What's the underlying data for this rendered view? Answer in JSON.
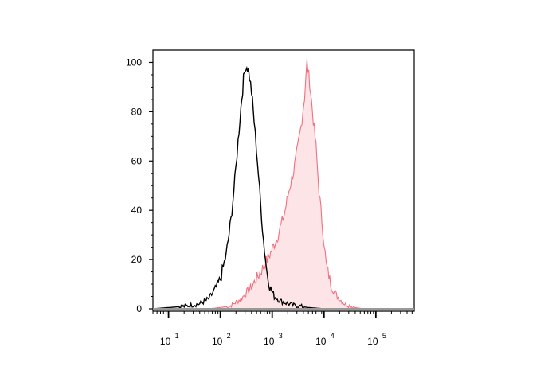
{
  "colors": {
    "axis": "#000000",
    "control_line": "#000000",
    "sample_line": "#f07080",
    "sample_fill": "#fde4e6",
    "baseline_overlap": "#999999"
  },
  "chart_data": {
    "type": "area",
    "title": "",
    "xlabel": "",
    "ylabel": "",
    "xscale": "log",
    "xlim": [
      5,
      550000
    ],
    "ylim": [
      0,
      105
    ],
    "grid": false,
    "legend": "none",
    "x_ticks": [
      {
        "base": "10",
        "exp": "1",
        "value": 10
      },
      {
        "base": "10",
        "exp": "2",
        "value": 100
      },
      {
        "base": "10",
        "exp": "3",
        "value": 1000
      },
      {
        "base": "10",
        "exp": "4",
        "value": 10000
      },
      {
        "base": "10",
        "exp": "5",
        "value": 100000
      }
    ],
    "y_ticks": [
      "0",
      "20",
      "40",
      "60",
      "80",
      "100"
    ],
    "y_tick_values": [
      0,
      20,
      40,
      60,
      80,
      100
    ],
    "series": [
      {
        "style": "line",
        "color": "#000000",
        "points": [
          [
            5,
            0
          ],
          [
            10,
            0.5
          ],
          [
            20,
            1
          ],
          [
            40,
            2
          ],
          [
            60,
            4
          ],
          [
            80,
            8
          ],
          [
            100,
            12
          ],
          [
            130,
            22
          ],
          [
            160,
            36
          ],
          [
            190,
            52
          ],
          [
            220,
            68
          ],
          [
            250,
            82
          ],
          [
            280,
            93
          ],
          [
            310,
            99
          ],
          [
            350,
            97
          ],
          [
            400,
            88
          ],
          [
            450,
            76
          ],
          [
            520,
            60
          ],
          [
            600,
            42
          ],
          [
            680,
            28
          ],
          [
            780,
            16
          ],
          [
            900,
            9
          ],
          [
            1100,
            5
          ],
          [
            1500,
            3
          ],
          [
            2500,
            1.5
          ],
          [
            5000,
            0.5
          ],
          [
            10000,
            0
          ],
          [
            550000,
            0
          ]
        ]
      },
      {
        "style": "filled",
        "color": "#f07080",
        "points": [
          [
            5,
            0
          ],
          [
            60,
            0
          ],
          [
            150,
            1
          ],
          [
            250,
            4
          ],
          [
            400,
            9
          ],
          [
            600,
            15
          ],
          [
            900,
            22
          ],
          [
            1300,
            30
          ],
          [
            1700,
            38
          ],
          [
            2100,
            48
          ],
          [
            2600,
            56
          ],
          [
            3100,
            65
          ],
          [
            3600,
            74
          ],
          [
            4200,
            86
          ],
          [
            4700,
            100
          ],
          [
            5300,
            92
          ],
          [
            6000,
            80
          ],
          [
            7000,
            66
          ],
          [
            8000,
            48
          ],
          [
            9500,
            32
          ],
          [
            11000,
            18
          ],
          [
            14000,
            9
          ],
          [
            18000,
            5
          ],
          [
            25000,
            2
          ],
          [
            40000,
            0.5
          ],
          [
            60000,
            0
          ],
          [
            550000,
            0
          ]
        ]
      }
    ]
  }
}
